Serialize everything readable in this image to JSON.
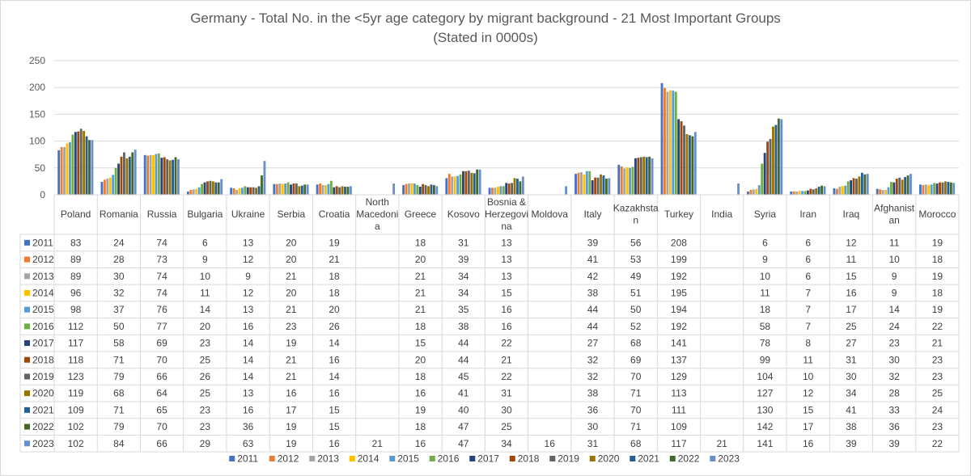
{
  "chart_data": {
    "type": "bar",
    "title": "Germany - Total No. in the <5yr age category by migrant background - 21 Most Important Groups",
    "subtitle": "(Stated in 0000s)",
    "categories": [
      "Poland",
      "Romania",
      "Russia",
      "Bulgaria",
      "Ukraine",
      "Serbia",
      "Croatia",
      "North Macedonia",
      "Greece",
      "Kosovo",
      "Bosnia & Herzegovina",
      "Moldova",
      "Italy",
      "Kazakhstan",
      "Turkey",
      "India",
      "Syria",
      "Iran",
      "Iraq",
      "Afghanistan",
      "Morocco"
    ],
    "category_label_lines": [
      [
        "Poland"
      ],
      [
        "Romania"
      ],
      [
        "Russia"
      ],
      [
        "Bulgaria"
      ],
      [
        "Ukraine"
      ],
      [
        "Serbia"
      ],
      [
        "Croatia"
      ],
      [
        "North",
        "Macedoni",
        "a"
      ],
      [
        "Greece"
      ],
      [
        "Kosovo"
      ],
      [
        "Bosnia &",
        "Herzegovi",
        "na"
      ],
      [
        "Moldova"
      ],
      [
        "Italy"
      ],
      [
        "Kazakhsta",
        "n"
      ],
      [
        "Turkey"
      ],
      [
        "India"
      ],
      [
        "Syria"
      ],
      [
        "Iran"
      ],
      [
        "Iraq"
      ],
      [
        "Afghanist",
        "an"
      ],
      [
        "Morocco"
      ]
    ],
    "ylim": [
      0,
      250
    ],
    "yticks": [
      0,
      50,
      100,
      150,
      200,
      250
    ],
    "ytick_labels": [
      "0",
      "50",
      "100",
      "150",
      "200",
      "250"
    ],
    "grid": true,
    "legend_position": "bottom",
    "data_table": true,
    "series": [
      {
        "name": "2011",
        "color": "#4472C4",
        "values": [
          83,
          24,
          74,
          6,
          13,
          20,
          19,
          null,
          18,
          31,
          13,
          null,
          39,
          56,
          208,
          null,
          6,
          6,
          12,
          11,
          19
        ]
      },
      {
        "name": "2012",
        "color": "#ED7D31",
        "values": [
          89,
          28,
          73,
          9,
          12,
          20,
          21,
          null,
          20,
          39,
          13,
          null,
          41,
          53,
          199,
          null,
          9,
          6,
          11,
          10,
          18
        ]
      },
      {
        "name": "2013",
        "color": "#A5A5A5",
        "values": [
          89,
          30,
          74,
          10,
          9,
          21,
          18,
          null,
          21,
          34,
          13,
          null,
          42,
          49,
          192,
          null,
          10,
          6,
          15,
          9,
          19
        ]
      },
      {
        "name": "2014",
        "color": "#FFC000",
        "values": [
          96,
          32,
          74,
          11,
          12,
          20,
          18,
          null,
          21,
          34,
          15,
          null,
          38,
          51,
          195,
          null,
          11,
          7,
          16,
          9,
          18
        ]
      },
      {
        "name": "2015",
        "color": "#5B9BD5",
        "values": [
          98,
          37,
          76,
          14,
          13,
          21,
          20,
          null,
          21,
          35,
          16,
          null,
          44,
          50,
          194,
          null,
          18,
          7,
          17,
          14,
          19
        ]
      },
      {
        "name": "2016",
        "color": "#70AD47",
        "values": [
          112,
          50,
          77,
          20,
          16,
          23,
          26,
          null,
          18,
          38,
          16,
          null,
          44,
          52,
          192,
          null,
          58,
          7,
          25,
          24,
          22
        ]
      },
      {
        "name": "2017",
        "color": "#264478",
        "values": [
          117,
          58,
          69,
          23,
          14,
          19,
          14,
          null,
          15,
          44,
          22,
          null,
          27,
          68,
          141,
          null,
          78,
          8,
          27,
          23,
          21
        ]
      },
      {
        "name": "2018",
        "color": "#9E480E",
        "values": [
          118,
          71,
          70,
          25,
          14,
          21,
          16,
          null,
          20,
          44,
          21,
          null,
          32,
          69,
          137,
          null,
          99,
          11,
          31,
          30,
          23
        ]
      },
      {
        "name": "2019",
        "color": "#636363",
        "values": [
          123,
          79,
          66,
          26,
          14,
          21,
          14,
          null,
          18,
          45,
          22,
          null,
          32,
          70,
          129,
          null,
          104,
          10,
          30,
          32,
          23
        ]
      },
      {
        "name": "2020",
        "color": "#997300",
        "values": [
          119,
          68,
          64,
          25,
          13,
          16,
          16,
          null,
          16,
          41,
          31,
          null,
          38,
          71,
          113,
          null,
          127,
          12,
          34,
          28,
          25
        ]
      },
      {
        "name": "2021",
        "color": "#255E91",
        "values": [
          109,
          71,
          65,
          23,
          16,
          17,
          15,
          null,
          19,
          40,
          30,
          null,
          36,
          70,
          111,
          null,
          130,
          15,
          41,
          33,
          24
        ]
      },
      {
        "name": "2022",
        "color": "#43682B",
        "values": [
          102,
          79,
          70,
          23,
          36,
          19,
          15,
          null,
          18,
          47,
          25,
          null,
          30,
          71,
          109,
          null,
          142,
          17,
          38,
          36,
          23
        ]
      },
      {
        "name": "2023",
        "color": "#698ED0",
        "values": [
          102,
          84,
          66,
          29,
          63,
          19,
          16,
          21,
          16,
          47,
          34,
          16,
          31,
          68,
          117,
          21,
          141,
          16,
          39,
          39,
          22
        ]
      }
    ]
  }
}
